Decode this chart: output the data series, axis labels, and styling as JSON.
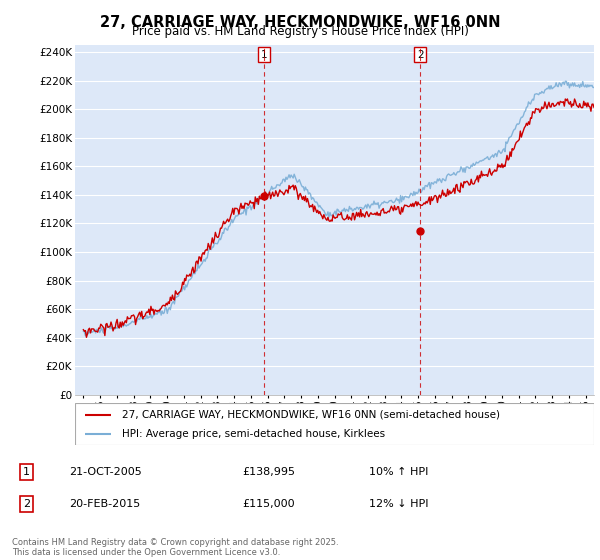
{
  "title": "27, CARRIAGE WAY, HECKMONDWIKE, WF16 0NN",
  "subtitle": "Price paid vs. HM Land Registry's House Price Index (HPI)",
  "legend_line1": "27, CARRIAGE WAY, HECKMONDWIKE, WF16 0NN (semi-detached house)",
  "legend_line2": "HPI: Average price, semi-detached house, Kirklees",
  "sale1_label": "1",
  "sale1_date": "21-OCT-2005",
  "sale1_price": "£138,995",
  "sale1_hpi": "10% ↑ HPI",
  "sale2_label": "2",
  "sale2_date": "20-FEB-2015",
  "sale2_price": "£115,000",
  "sale2_hpi": "12% ↓ HPI",
  "footer": "Contains HM Land Registry data © Crown copyright and database right 2025.\nThis data is licensed under the Open Government Licence v3.0.",
  "vline1_x": 2005.8,
  "vline2_x": 2015.12,
  "sale1_marker_x": 2005.8,
  "sale1_marker_y": 138995,
  "sale2_marker_x": 2015.12,
  "sale2_marker_y": 115000,
  "ylim": [
    0,
    245000
  ],
  "xlim": [
    1994.5,
    2025.5
  ],
  "red_color": "#cc0000",
  "blue_color": "#7aaed6",
  "background_color": "#dde8f8",
  "grid_color": "#cccccc",
  "yticks": [
    0,
    20000,
    40000,
    60000,
    80000,
    100000,
    120000,
    140000,
    160000,
    180000,
    200000,
    220000,
    240000
  ],
  "ytick_labels": [
    "£0",
    "£20K",
    "£40K",
    "£60K",
    "£80K",
    "£100K",
    "£120K",
    "£140K",
    "£160K",
    "£180K",
    "£200K",
    "£220K",
    "£240K"
  ],
  "xticks": [
    1995,
    1996,
    1997,
    1998,
    1999,
    2000,
    2001,
    2002,
    2003,
    2004,
    2005,
    2006,
    2007,
    2008,
    2009,
    2010,
    2011,
    2012,
    2013,
    2014,
    2015,
    2016,
    2017,
    2018,
    2019,
    2020,
    2021,
    2022,
    2023,
    2024,
    2025
  ]
}
